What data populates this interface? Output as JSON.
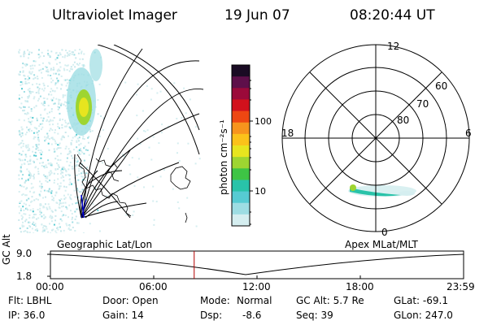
{
  "header": {
    "instrument": "Ultraviolet Imager",
    "date": "19 Jun 07",
    "time": "08:20:44 UT"
  },
  "left_panel": {
    "label": "Geographic Lat/Lon"
  },
  "colorbar": {
    "label": "photon cm⁻²s⁻¹",
    "ticks": [
      "100",
      "10"
    ],
    "scale": "log",
    "colors": [
      "#1a0b24",
      "#5e0f4a",
      "#9b0a3a",
      "#d2111c",
      "#ee4712",
      "#f7941d",
      "#fbc21a",
      "#e7e51f",
      "#9ed531",
      "#3ec445",
      "#29c3a9",
      "#56cbd2",
      "#9ddde3",
      "#d5eef0"
    ]
  },
  "right_panel": {
    "label": "Apex MLat/MLT",
    "mlt_labels": {
      "top": "12",
      "left": "18",
      "right": "6",
      "bottom": "0"
    },
    "lat_labels": [
      "60",
      "70",
      "80"
    ]
  },
  "altitude_plot": {
    "ylabel": "GC Alt",
    "yticks": [
      "9.0",
      "1.8"
    ],
    "xticks": [
      "00:00",
      "06:00",
      "12:00",
      "18:00",
      "23:59"
    ],
    "current_time_hours": 8.35
  },
  "info": {
    "filter": "Flt: LBHL",
    "ip": "IP: 36.0",
    "door": "Door: Open",
    "gain": "Gain: 14",
    "mode_label": "Mode:",
    "mode_value": "Normal",
    "dsp_label": "Dsp:",
    "dsp_value": "-8.6",
    "gc_alt": "GC Alt: 5.7 Re",
    "seq": "Seq: 39",
    "glat": "GLat: -69.1",
    "glon": "GLon: 247.0"
  }
}
